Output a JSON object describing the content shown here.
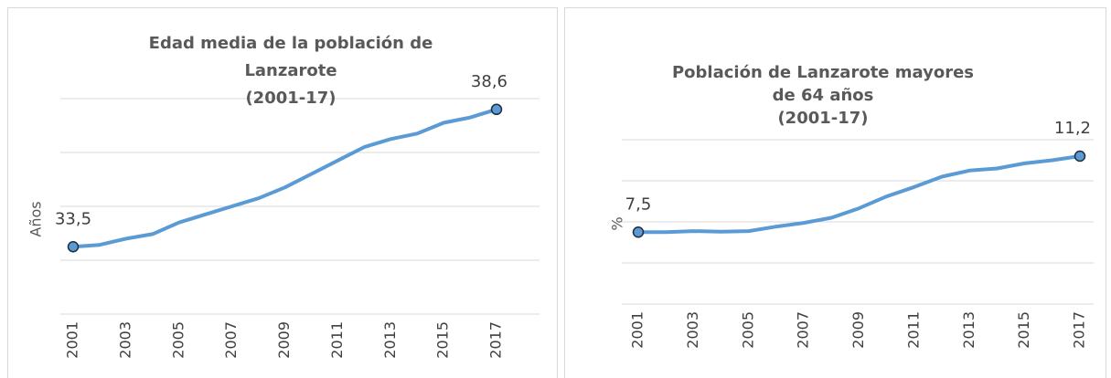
{
  "chart_data": [
    {
      "type": "line",
      "title": [
        "Edad media de la población de",
        "Lanzarote",
        "(2001-17)"
      ],
      "y_label": "Años",
      "categories": [
        "2001",
        null,
        "2003",
        null,
        "2005",
        null,
        "2007",
        null,
        "2009",
        null,
        "2011",
        null,
        "2013",
        null,
        "2015",
        null,
        "2017"
      ],
      "series": [
        {
          "name": "Edad media",
          "color": "#5b9bd5",
          "values": [
            33.5,
            33.57,
            33.8,
            33.97,
            34.4,
            34.7,
            35.0,
            35.3,
            35.7,
            36.2,
            36.7,
            37.2,
            37.5,
            37.7,
            38.1,
            38.3,
            38.6
          ],
          "value_labels": [
            "33,5",
            null,
            null,
            null,
            null,
            null,
            null,
            null,
            null,
            null,
            null,
            null,
            null,
            null,
            null,
            null,
            "38,6"
          ]
        }
      ],
      "ylim": [
        31,
        39
      ],
      "yticks": [
        31,
        33,
        35,
        37,
        39
      ],
      "grid": true
    },
    {
      "type": "line",
      "title": [
        "Población de Lanzarote mayores",
        "de 64 años",
        "(2001-17)"
      ],
      "y_label": "%",
      "categories": [
        "2001",
        null,
        "2003",
        null,
        "2005",
        null,
        "2007",
        null,
        "2009",
        null,
        "2011",
        null,
        "2013",
        null,
        "2015",
        null,
        "2017"
      ],
      "series": [
        {
          "name": "Mayores de 64",
          "color": "#5b9bd5",
          "values": [
            7.5,
            7.5,
            7.55,
            7.52,
            7.55,
            7.77,
            7.95,
            8.2,
            8.66,
            9.24,
            9.7,
            10.2,
            10.5,
            10.6,
            10.85,
            11.0,
            11.2
          ],
          "value_labels": [
            "7,5",
            null,
            null,
            null,
            null,
            null,
            null,
            null,
            null,
            null,
            null,
            null,
            null,
            null,
            null,
            null,
            "11,2"
          ]
        }
      ],
      "ylim": [
        4,
        12
      ],
      "yticks": [
        4,
        6,
        8,
        10,
        12
      ],
      "grid": true
    }
  ]
}
